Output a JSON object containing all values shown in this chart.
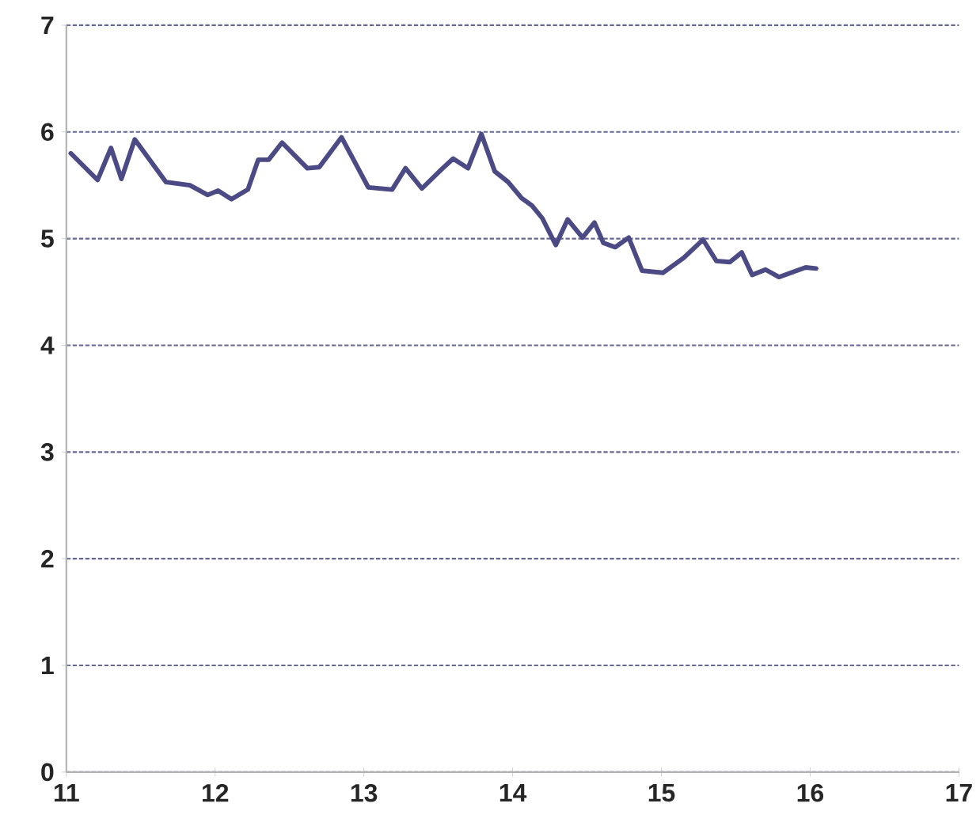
{
  "chart_data": {
    "type": "line",
    "xlim": [
      11,
      17
    ],
    "xticks": [
      11,
      12,
      13,
      14,
      15,
      16,
      17
    ],
    "ylim": [
      0,
      7
    ],
    "yticks": [
      0,
      1,
      2,
      3,
      4,
      5,
      6,
      7
    ],
    "grid": "y",
    "line_style": "solid",
    "series": [
      {
        "color": "#4b4a85",
        "x": [
          11.03,
          11.21,
          11.3,
          11.37,
          11.46,
          11.67,
          11.83,
          11.95,
          12.02,
          12.11,
          12.22,
          12.29,
          12.36,
          12.45,
          12.62,
          12.7,
          12.85,
          13.03,
          13.19,
          13.28,
          13.39,
          13.53,
          13.6,
          13.7,
          13.79,
          13.88,
          13.97,
          14.06,
          14.13,
          14.2,
          14.29,
          14.37,
          14.47,
          14.55,
          14.61,
          14.69,
          14.78,
          14.87,
          15.01,
          15.15,
          15.28,
          15.37,
          15.46,
          15.54,
          15.61,
          15.7,
          15.79,
          15.97,
          16.04
        ],
        "values": [
          5.8,
          5.55,
          5.85,
          5.56,
          5.93,
          5.53,
          5.5,
          5.41,
          5.45,
          5.37,
          5.46,
          5.74,
          5.74,
          5.9,
          5.66,
          5.67,
          5.95,
          5.48,
          5.46,
          5.66,
          5.47,
          5.66,
          5.75,
          5.66,
          5.98,
          5.63,
          5.53,
          5.38,
          5.31,
          5.19,
          4.94,
          5.18,
          5.01,
          5.15,
          4.96,
          4.92,
          5.01,
          4.7,
          4.68,
          4.82,
          4.99,
          4.79,
          4.78,
          4.87,
          4.66,
          4.71,
          4.64,
          4.73,
          4.72
        ]
      }
    ]
  }
}
